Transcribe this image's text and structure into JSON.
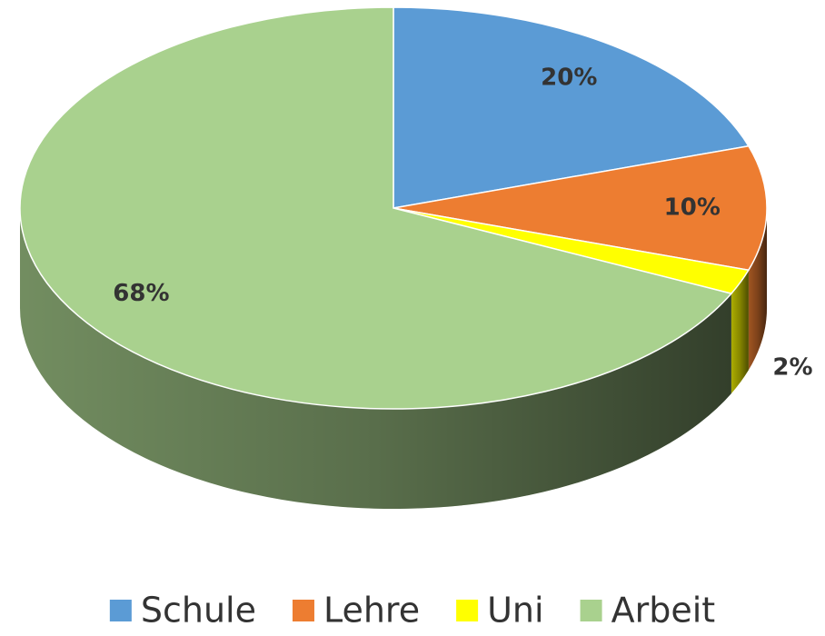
{
  "chart_data": {
    "type": "pie",
    "categories": [
      "Schule",
      "Lehre",
      "Uni",
      "Arbeit"
    ],
    "values": [
      20,
      10,
      2,
      68
    ],
    "value_labels": [
      "20%",
      "10%",
      "2%",
      "68%"
    ],
    "colors": [
      "#5b9bd5",
      "#ed7d31",
      "#ffff00",
      "#a9d18e"
    ],
    "legend": "bottom"
  }
}
